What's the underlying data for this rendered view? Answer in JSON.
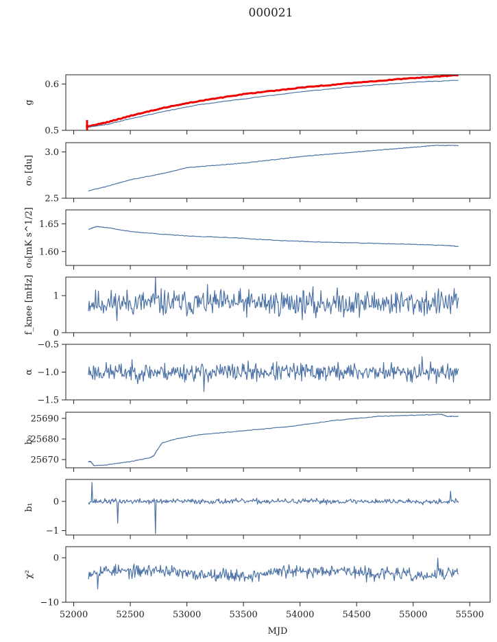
{
  "title": "000021",
  "xlabel": "MJD",
  "colors": {
    "series": "#4c72a6",
    "highlight": "#ee0000",
    "axis": "#222222"
  },
  "chart_data": [
    {
      "type": "line",
      "name": "gain",
      "ylabel": "g",
      "ylim": [
        0.5,
        0.62
      ],
      "yticks": [
        {
          "v": 0.5,
          "label": "0.5"
        },
        {
          "v": 0.6,
          "label": "0.6"
        }
      ],
      "series": [
        {
          "name": "red",
          "color": "#ee0000",
          "x": [
            52110,
            52160,
            52300,
            52500,
            52800,
            53100,
            53500,
            54000,
            54500,
            55000,
            55400
          ],
          "y": [
            0.508,
            0.51,
            0.518,
            0.531,
            0.549,
            0.563,
            0.578,
            0.592,
            0.603,
            0.613,
            0.619
          ]
        },
        {
          "name": "blue",
          "color": "#4c72a6",
          "x": [
            52130,
            52300,
            52500,
            52800,
            53100,
            53500,
            54000,
            54500,
            55000,
            55400
          ],
          "y": [
            0.507,
            0.513,
            0.525,
            0.541,
            0.555,
            0.568,
            0.583,
            0.595,
            0.604,
            0.608
          ]
        }
      ]
    },
    {
      "type": "line",
      "name": "sigma0-du",
      "ylabel": "σ₀ [du]",
      "ylim": [
        2.5,
        3.1
      ],
      "yticks": [
        {
          "v": 2.5,
          "label": "2.5"
        },
        {
          "v": 3.0,
          "label": "3.0"
        }
      ],
      "series": [
        {
          "name": "blue",
          "color": "#4c72a6",
          "x": [
            52130,
            52300,
            52500,
            52800,
            53000,
            53300,
            53500,
            53800,
            54000,
            54300,
            54500,
            54800,
            55000,
            55200,
            55400
          ],
          "y": [
            2.58,
            2.63,
            2.7,
            2.77,
            2.83,
            2.86,
            2.88,
            2.92,
            2.95,
            2.98,
            3.0,
            3.03,
            3.05,
            3.07,
            3.07
          ]
        }
      ]
    },
    {
      "type": "line",
      "name": "sigma0-mks",
      "ylabel": "σ₀[mK s^1/2]",
      "ylim": [
        1.575,
        1.675
      ],
      "yticks": [
        {
          "v": 1.6,
          "label": "1.60"
        },
        {
          "v": 1.65,
          "label": "1.65"
        }
      ],
      "series": [
        {
          "name": "blue",
          "color": "#4c72a6",
          "x": [
            52130,
            52200,
            52300,
            52500,
            52800,
            53000,
            53400,
            53800,
            54200,
            54600,
            55000,
            55300,
            55400
          ],
          "y": [
            1.64,
            1.645,
            1.643,
            1.636,
            1.631,
            1.628,
            1.625,
            1.62,
            1.617,
            1.615,
            1.613,
            1.611,
            1.609
          ]
        }
      ]
    },
    {
      "type": "line",
      "name": "fknee",
      "ylabel": "f_knee [mHz]",
      "ylim": [
        0,
        1.5
      ],
      "yticks": [
        {
          "v": 0,
          "label": "0"
        },
        {
          "v": 1,
          "label": "1"
        }
      ],
      "noise": {
        "x_start": 52130,
        "x_end": 55400,
        "center": 0.8,
        "amplitude": 0.28,
        "n": 520,
        "seed": 11
      },
      "spikes": [
        {
          "x": 52720,
          "y": 1.5
        },
        {
          "x": 54140,
          "y": 0.4
        }
      ]
    },
    {
      "type": "line",
      "name": "alpha",
      "ylabel": "α",
      "ylim": [
        -1.5,
        -0.5
      ],
      "yticks": [
        {
          "v": -1.5,
          "label": "−1.5"
        },
        {
          "v": -1.0,
          "label": "−1.0"
        },
        {
          "v": -0.5,
          "label": "−0.5"
        }
      ],
      "noise": {
        "x_start": 52130,
        "x_end": 55400,
        "center": -1.0,
        "amplitude": 0.13,
        "n": 520,
        "seed": 23
      },
      "spikes": [
        {
          "x": 53150,
          "y": -1.35
        },
        {
          "x": 55080,
          "y": -0.72
        }
      ]
    },
    {
      "type": "line",
      "name": "b0",
      "ylabel": "b₀",
      "ylim": [
        25666,
        25693
      ],
      "yticks": [
        {
          "v": 25670,
          "label": "25670"
        },
        {
          "v": 25680,
          "label": "25680"
        },
        {
          "v": 25690,
          "label": "25690"
        }
      ],
      "series": [
        {
          "name": "blue",
          "color": "#4c72a6",
          "x": [
            52130,
            52150,
            52180,
            52300,
            52500,
            52680,
            52710,
            52730,
            52780,
            52900,
            53100,
            53500,
            53900,
            54300,
            54700,
            55000,
            55250,
            55300,
            55400
          ],
          "y": [
            25669,
            25669,
            25667,
            25667.5,
            25669,
            25671,
            25672,
            25674,
            25678,
            25680,
            25682,
            25684,
            25686,
            25689,
            25691,
            25691.5,
            25692,
            25691,
            25691
          ]
        }
      ]
    },
    {
      "type": "line",
      "name": "b1",
      "ylabel": "b₁",
      "ylim": [
        -1.15,
        0.75
      ],
      "yticks": [
        {
          "v": -1,
          "label": "−1"
        },
        {
          "v": 0,
          "label": "0"
        }
      ],
      "noise": {
        "x_start": 52130,
        "x_end": 55400,
        "center": 0.0,
        "amplitude": 0.07,
        "n": 520,
        "seed": 37
      },
      "spikes": [
        {
          "x": 52160,
          "y": 0.65
        },
        {
          "x": 52390,
          "y": -0.75
        },
        {
          "x": 52720,
          "y": -1.1
        },
        {
          "x": 55330,
          "y": 0.35
        }
      ]
    },
    {
      "type": "line",
      "name": "chi2",
      "ylabel": "χ²",
      "ylim": [
        -10,
        2.5
      ],
      "yticks": [
        {
          "v": -10,
          "label": "−10"
        },
        {
          "v": 0,
          "label": "0"
        }
      ],
      "noise": {
        "x_start": 52130,
        "x_end": 55400,
        "center": -3.4,
        "amplitude": 1.1,
        "wave": 0.9,
        "n": 520,
        "seed": 53
      },
      "spikes": [
        {
          "x": 52210,
          "y": -7
        },
        {
          "x": 55220,
          "y": -0.1
        }
      ]
    }
  ],
  "xlim": [
    51930,
    55680
  ],
  "xticks": [
    "52000",
    "52500",
    "53000",
    "53500",
    "54000",
    "54500",
    "55000",
    "55500"
  ]
}
